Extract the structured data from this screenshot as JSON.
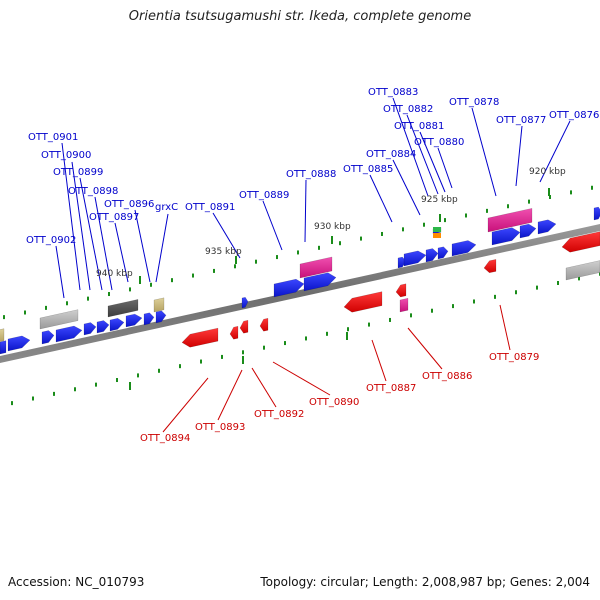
{
  "title": "Orientia tsutsugamushi str. Ikeda, complete genome",
  "footer": {
    "accession": "Accession: NC_010793",
    "summary": "Topology: circular; Length: 2,008,987 bp; Genes: 2,004"
  },
  "colors": {
    "forward_gene": "#0a14d8",
    "reverse_gene": "#e00000",
    "forward_label": "#0000cc",
    "reverse_label": "#cc0000",
    "backbone": "#777777",
    "tick": "#1a8c1a",
    "rna_pink": "#e0208c",
    "pseudo_gray": "#aaaaaa",
    "dark_gray": "#555555",
    "khaki": "#c9b878"
  },
  "scale_labels": [
    "940 kbp",
    "935 kbp",
    "930 kbp",
    "925 kbp",
    "920 kbp"
  ],
  "forward_labels": [
    "OTT_0901",
    "OTT_0900",
    "OTT_0899",
    "OTT_0898",
    "OTT_0896",
    "OTT_0897",
    "OTT_0902",
    "grxC",
    "OTT_0891",
    "OTT_0889",
    "OTT_0888",
    "OTT_0885",
    "OTT_0884",
    "OTT_0883",
    "OTT_0882",
    "OTT_0881",
    "OTT_0880",
    "OTT_0878",
    "OTT_0877",
    "OTT_0876"
  ],
  "reverse_labels": [
    "OTT_0894",
    "OTT_0893",
    "OTT_0892",
    "OTT_0890",
    "OTT_0887",
    "OTT_0886",
    "OTT_0879"
  ]
}
